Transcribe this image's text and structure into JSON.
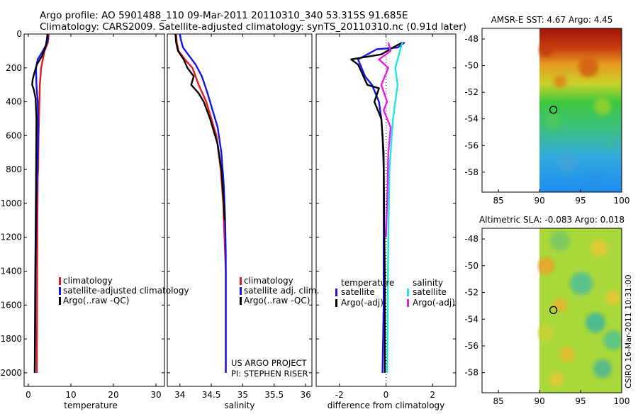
{
  "header": {
    "line1": "Argo profile: AO 5901488_110 09-Mar-2011 20110310_340 53.315S 91.685E",
    "line2": "Climatology: CARS2009. Satellite-adjusted climatology: synTS_20110310.nc (0.91d later)"
  },
  "credit": "CSIRO 16-Mar-2011 10:31:00",
  "colors": {
    "climatology": "#e8181c",
    "satellite": "#1414e6",
    "argo": "#000000",
    "sal_satellite": "#1ee6e6",
    "sal_argo": "#e61ee6",
    "marker": "#000000"
  },
  "chart_data": [
    {
      "id": "temperature",
      "type": "line",
      "xlabel": "temperature",
      "ylabel": "",
      "xlim": [
        -1,
        32
      ],
      "ylim": [
        2080,
        0
      ],
      "xticks": [
        0,
        10,
        20,
        30
      ],
      "yticks": [
        0,
        200,
        400,
        600,
        800,
        1000,
        1200,
        1400,
        1600,
        1800,
        2000
      ],
      "ytick_labels": [
        "0",
        "200",
        "400",
        "600",
        "800",
        "1000",
        "1200",
        "1400",
        "1600",
        "1800",
        "2000"
      ],
      "legend": [
        "climatology",
        "satellite-adjusted climatology",
        "Argo(..raw -QC)"
      ],
      "series": [
        {
          "name": "climatology",
          "color_key": "climatology",
          "x": [
            4.8,
            4.6,
            3.8,
            3.0,
            2.7,
            2.6,
            2.5,
            2.4,
            2.3,
            2.2,
            2.1,
            2.0
          ],
          "y": [
            0,
            50,
            100,
            200,
            300,
            400,
            500,
            600,
            800,
            850,
            1200,
            2000
          ]
        },
        {
          "name": "satellite",
          "color_key": "satellite",
          "x": [
            4.6,
            4.6,
            4.3,
            3.4,
            2.2,
            1.8,
            1.9,
            2.2,
            2.3,
            2.3,
            2.1,
            1.9,
            1.7,
            1.6,
            1.5
          ],
          "y": [
            0,
            30,
            60,
            100,
            150,
            200,
            300,
            400,
            500,
            600,
            800,
            1000,
            1400,
            1800,
            2000
          ]
        },
        {
          "name": "Argo(..raw -QC)",
          "color_key": "argo",
          "x": [
            4.5,
            4.3,
            4.0,
            3.2,
            2.0,
            1.4,
            1.0,
            0.9,
            1.3,
            1.7,
            1.9,
            1.8,
            1.6,
            1.5
          ],
          "y": [
            0,
            40,
            80,
            130,
            180,
            230,
            270,
            300,
            330,
            380,
            500,
            900,
            1500,
            2000
          ]
        }
      ]
    },
    {
      "id": "salinity",
      "type": "line",
      "xlabel": "salinity",
      "ylabel": "",
      "xlim": [
        33.8,
        36.1
      ],
      "ylim": [
        2080,
        0
      ],
      "xticks": [
        34,
        34.5,
        35,
        35.5,
        36
      ],
      "legend": [
        "climatology",
        "satellite adj. clim.",
        "Argo(..raw -QC)"
      ],
      "annotations": [
        "US ARGO PROJECT",
        "PI: STEPHEN RISER"
      ],
      "series": [
        {
          "name": "climatology",
          "color_key": "climatology",
          "x": [
            33.94,
            33.95,
            33.98,
            34.08,
            34.2,
            34.3,
            34.42,
            34.5,
            34.58,
            34.65,
            34.69,
            34.71,
            34.73,
            34.73
          ],
          "y": [
            0,
            50,
            100,
            150,
            200,
            300,
            400,
            500,
            600,
            800,
            1000,
            1200,
            1400,
            2000
          ]
        },
        {
          "name": "satellite",
          "color_key": "satellite",
          "x": [
            34.0,
            34.02,
            34.05,
            34.15,
            34.25,
            34.35,
            34.44,
            34.52,
            34.6,
            34.66,
            34.7,
            34.72,
            34.73,
            34.73
          ],
          "y": [
            0,
            40,
            80,
            130,
            180,
            250,
            350,
            450,
            550,
            700,
            900,
            1100,
            1300,
            2000
          ]
        },
        {
          "name": "Argo(..raw -QC)",
          "color_key": "argo",
          "x": [
            33.93,
            33.94,
            33.97,
            34.06,
            34.12,
            34.22,
            34.18,
            34.3,
            34.38,
            34.48,
            34.6,
            34.66,
            34.7,
            34.71
          ],
          "y": [
            0,
            50,
            100,
            150,
            200,
            250,
            300,
            350,
            400,
            500,
            650,
            800,
            1000,
            1100
          ]
        }
      ]
    },
    {
      "id": "difference",
      "type": "line",
      "xlabel": "difference from climatology",
      "ylabel": "",
      "xlim": [
        -3,
        3
      ],
      "ylim": [
        2080,
        0
      ],
      "xticks": [
        -2,
        0,
        2
      ],
      "legend_groups": [
        {
          "title": "temperature",
          "items": [
            "satellite",
            "Argo(-adj)"
          ]
        },
        {
          "title": "salinity",
          "items": [
            "satellite",
            "Argo(-adj)"
          ]
        }
      ],
      "series": [
        {
          "name": "temperature satellite",
          "color_key": "satellite",
          "x": [
            0.8,
            0.5,
            -0.4,
            -1.2,
            -0.9,
            -0.6,
            -0.3,
            -0.2,
            -0.15,
            -0.1,
            -0.1,
            -0.1,
            -0.15
          ],
          "y": [
            50,
            80,
            90,
            150,
            250,
            300,
            400,
            500,
            600,
            800,
            1200,
            1600,
            2000
          ]
        },
        {
          "name": "temperature Argo(-adj)",
          "color_key": "argo",
          "x": [
            0.7,
            0.3,
            -0.2,
            -1.5,
            -1.2,
            -0.8,
            -0.3,
            -0.5,
            -0.2,
            -0.1,
            -0.05,
            -0.05
          ],
          "y": [
            50,
            80,
            120,
            150,
            180,
            300,
            320,
            400,
            500,
            700,
            1500,
            2000
          ]
        },
        {
          "name": "salinity satellite",
          "color_key": "sal_satellite",
          "x": [
            0.7,
            0.6,
            0.4,
            0.5,
            0.4,
            0.3,
            0.25,
            0.15,
            0.1,
            0.05
          ],
          "y": [
            50,
            100,
            200,
            300,
            400,
            500,
            600,
            800,
            1200,
            2000
          ]
        },
        {
          "name": "salinity Argo(-adj)",
          "color_key": "sal_argo",
          "x": [
            0.1,
            0.2,
            -0.3,
            0.1,
            -0.2,
            0.05,
            -0.1,
            0.2,
            0.1,
            0.05,
            0.0
          ],
          "y": [
            50,
            100,
            150,
            200,
            300,
            400,
            450,
            550,
            700,
            1000,
            1200
          ]
        }
      ]
    },
    {
      "id": "sst-map",
      "type": "heatmap",
      "title": "AMSR-E SST: 4.67 Argo: 4.45",
      "xlim": [
        83,
        100
      ],
      "ylim": [
        -59.5,
        -47.2
      ],
      "xticks": [
        85,
        90,
        95,
        100
      ],
      "yticks": [
        -48,
        -50,
        -52,
        -54,
        -56,
        -58
      ],
      "data_xrange": [
        90,
        100
      ],
      "marker": {
        "lon": 91.685,
        "lat": -53.315
      }
    },
    {
      "id": "sla-map",
      "type": "heatmap",
      "title": "Altimetric SLA: -0.083 Argo: 0.018",
      "xlim": [
        83,
        100
      ],
      "ylim": [
        -59.5,
        -47.2
      ],
      "xticks": [
        85,
        90,
        95,
        100
      ],
      "yticks": [
        -48,
        -50,
        -52,
        -54,
        -56,
        -58
      ],
      "data_xrange": [
        90,
        100
      ],
      "marker": {
        "lon": 91.685,
        "lat": -53.315
      }
    }
  ]
}
